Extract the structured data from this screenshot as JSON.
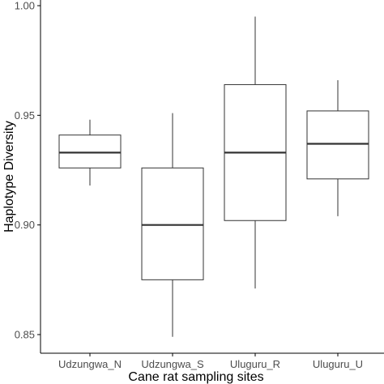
{
  "chart_data": {
    "type": "boxplot",
    "xlabel": "Cane rat sampling sites",
    "ylabel": "Haplotype Diversity",
    "ylim": [
      0.845,
      1.0
    ],
    "yticks": [
      0.85,
      0.9,
      0.95,
      1.0
    ],
    "ytick_labels": [
      "0.85",
      "0.90",
      "0.95",
      "1.00"
    ],
    "grid": false,
    "categories": [
      "Udzungwa_N",
      "Udzungwa_S",
      "Uluguru_R",
      "Uluguru_U"
    ],
    "boxes": [
      {
        "category": "Udzungwa_N",
        "whisker_low": 0.918,
        "q1": 0.926,
        "median": 0.933,
        "q3": 0.941,
        "whisker_high": 0.948
      },
      {
        "category": "Udzungwa_S",
        "whisker_low": 0.849,
        "q1": 0.875,
        "median": 0.9,
        "q3": 0.926,
        "whisker_high": 0.951
      },
      {
        "category": "Uluguru_R",
        "whisker_low": 0.871,
        "q1": 0.902,
        "median": 0.933,
        "q3": 0.964,
        "whisker_high": 0.995
      },
      {
        "category": "Uluguru_U",
        "whisker_low": 0.904,
        "q1": 0.921,
        "median": 0.937,
        "q3": 0.952,
        "whisker_high": 0.966
      }
    ],
    "colors": {
      "box_stroke": "#333333",
      "box_fill": "#ffffff",
      "axis": "#000000",
      "tick_text": "#4d4d4d"
    }
  }
}
